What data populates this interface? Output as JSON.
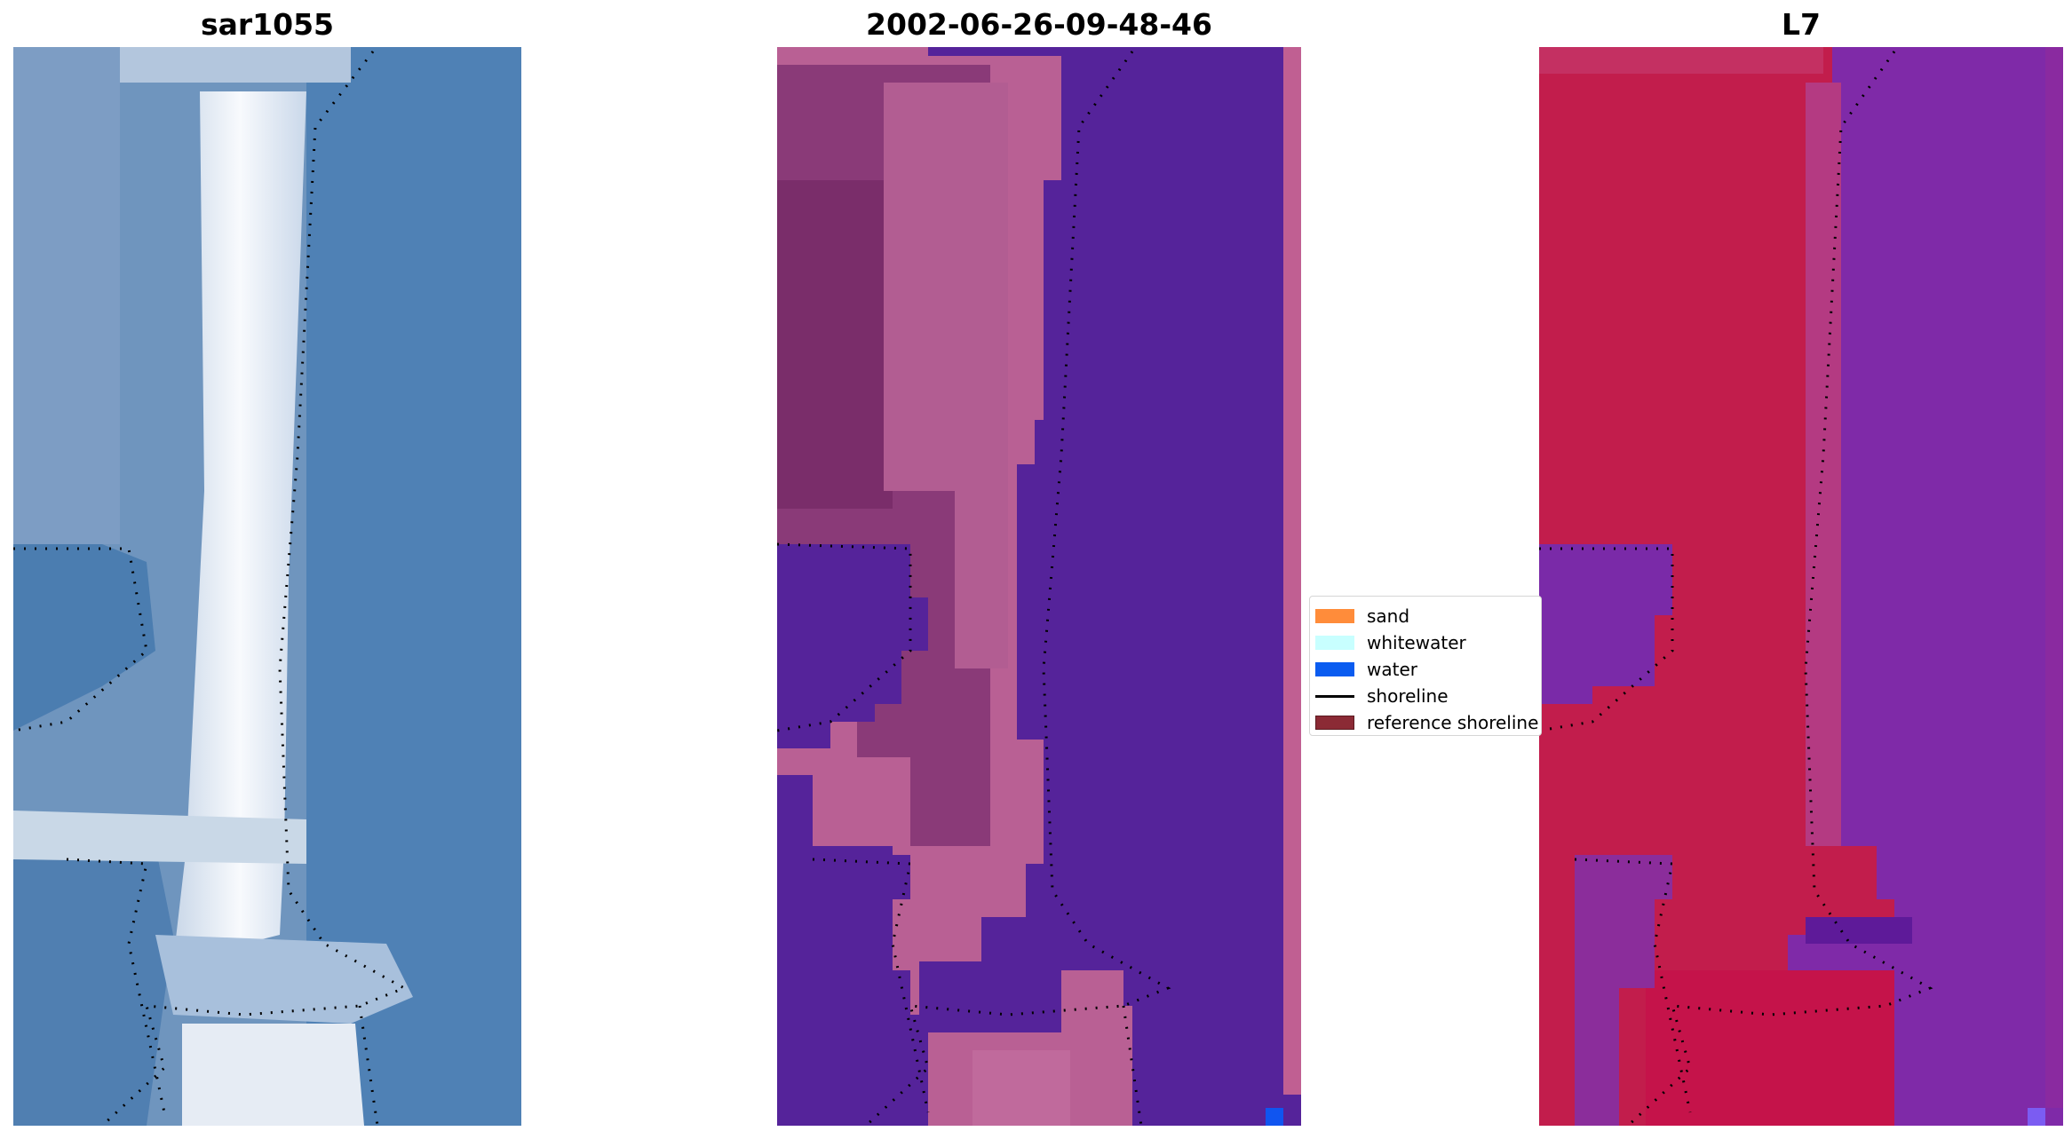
{
  "panels": [
    {
      "title": "sar1055",
      "icon": "satellite-rgb-image"
    },
    {
      "title": "2002-06-26-09-48-46",
      "icon": "classified-image"
    },
    {
      "title": "L7",
      "icon": "mndwi-image"
    }
  ],
  "legend": {
    "items": [
      {
        "label": "sand",
        "color": "#ff8c3a",
        "kind": "patch"
      },
      {
        "label": "whitewater",
        "color": "#c8ffff",
        "kind": "patch"
      },
      {
        "label": "water",
        "color": "#0a5cf0",
        "kind": "patch"
      },
      {
        "label": "shoreline",
        "color": "#000000",
        "kind": "line"
      },
      {
        "label": "reference shoreline",
        "color": "#8b2a35",
        "kind": "patch"
      }
    ]
  },
  "colors": {
    "rgb_water": "#4d80b4",
    "rgb_sand": "#eef2f8",
    "class_water": "#55239a",
    "class_land": "#b96094",
    "class_land_dark": "#7d2f6e",
    "index_land": "#c21d4c",
    "index_water": "#7f2aa8"
  }
}
